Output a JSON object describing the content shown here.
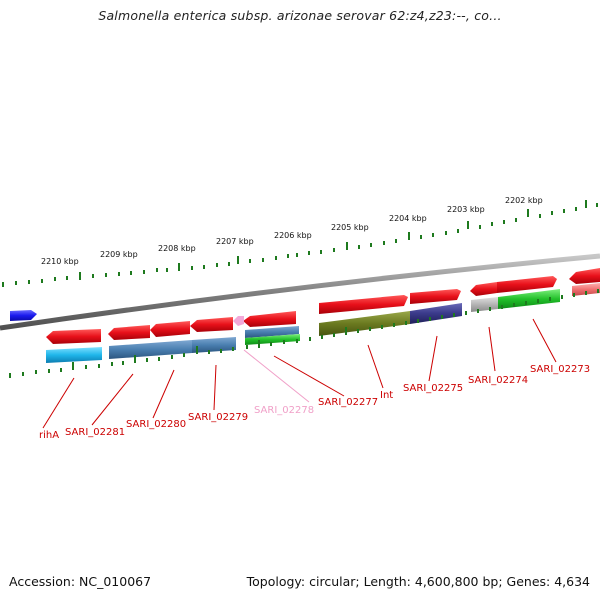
{
  "title": "Salmonella enterica subsp. arizonae serovar 62:z4,z23:--, co...",
  "footer": {
    "accession": "Accession: NC_010067",
    "summary": "Topology: circular; Length: 4,600,800 bp; Genes: 4,634"
  },
  "scale_labels": [
    "2210 kbp",
    "2209 kbp",
    "2208 kbp",
    "2207 kbp",
    "2206 kbp",
    "2205 kbp",
    "2204 kbp",
    "2203 kbp",
    "2202 kbp"
  ],
  "gene_labels": [
    "rihA",
    "SARI_02281",
    "SARI_02280",
    "SARI_02279",
    "SARI_02278",
    "SARI_02277",
    "Int",
    "SARI_02275",
    "SARI_02274",
    "SARI_02273"
  ],
  "colors": {
    "cds": "#e8101a",
    "label": "#cc0000",
    "label_faint": "#f0a0c8",
    "ticks": "#1e7a1e",
    "backbone": "#808080",
    "rihA_block": "#22b8e8",
    "steel_block": "#4a7fb0",
    "olive_block": "#6b7a20",
    "navy_block": "#3a3a8a",
    "green_block": "#22c02a",
    "grey_block": "#b0b0b0",
    "blue_arrow": "#1a1aee"
  }
}
